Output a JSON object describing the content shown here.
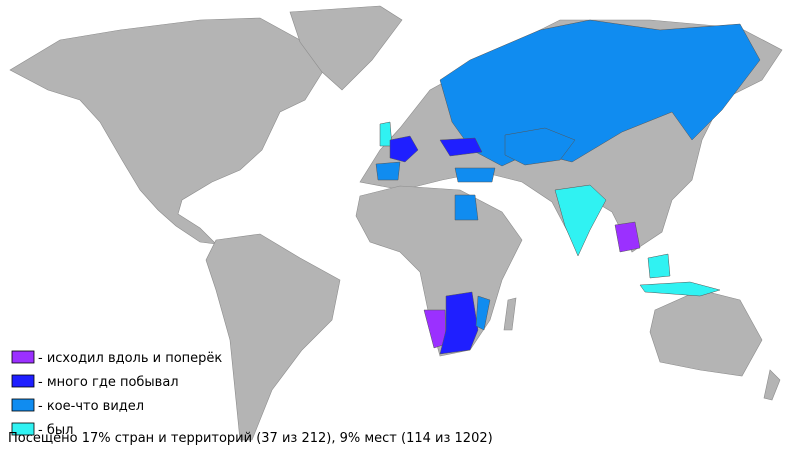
{
  "legend": [
    {
      "label": "- исходил вдоль и поперёк",
      "color": "#9b30ff"
    },
    {
      "label": "- много где побывал",
      "color": "#1f1fff"
    },
    {
      "label": "- кое-что видел",
      "color": "#108cf0"
    },
    {
      "label": "- был",
      "color": "#30f2f2"
    }
  ],
  "caption": "Посещено 17% стран и территорий (37 из 212), 9% мест (114 из 1202)"
}
